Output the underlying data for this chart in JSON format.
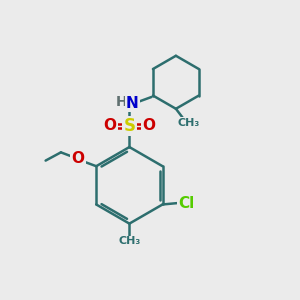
{
  "background_color": "#ebebeb",
  "bond_color": "#2d6e6e",
  "bond_width": 1.8,
  "atom_colors": {
    "N": "#0000cc",
    "O": "#cc0000",
    "S": "#cccc00",
    "Cl": "#55cc00",
    "H": "#607070",
    "C": "#2d6e6e"
  },
  "font_size": 11,
  "fig_size": [
    3.0,
    3.0
  ],
  "dpi": 100
}
